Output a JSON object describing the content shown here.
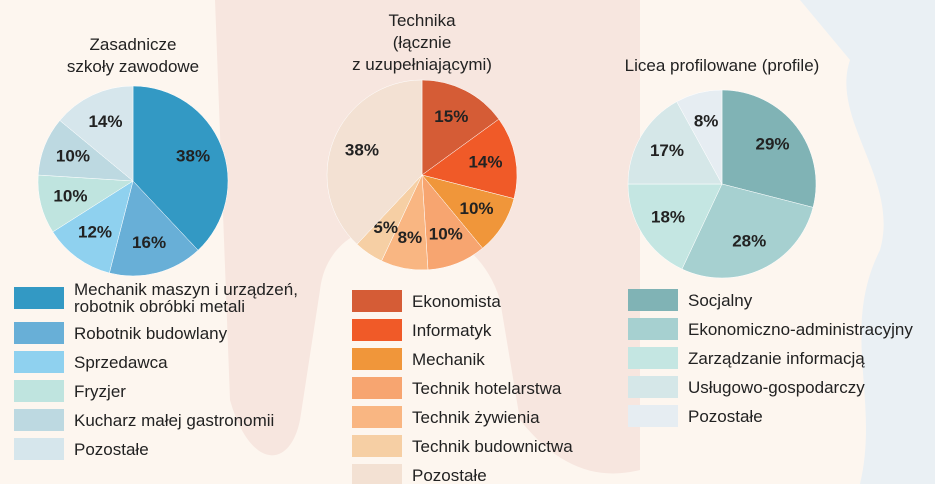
{
  "chart_data": [
    {
      "type": "pie",
      "title": "Zasadnicze\nszkoły zawodowe",
      "categories": [
        "Mechanik maszyn i urządzeń,\nrobotnik obróbki metali",
        "Robotnik budowlany",
        "Sprzedawca",
        "Fryzjer",
        "Kucharz małej gastronomii",
        "Pozostałe"
      ],
      "values": [
        38,
        16,
        12,
        10,
        10,
        14
      ],
      "value_labels": [
        "38%",
        "16%",
        "12%",
        "10%",
        "10%",
        "14%"
      ],
      "colors": [
        "#3399c4",
        "#68afd7",
        "#8fd1ef",
        "#bfe4df",
        "#bdd9e1",
        "#d6e6ec"
      ]
    },
    {
      "type": "pie",
      "title": "Technika\n(łącznie\nz uzupełniającymi)",
      "categories": [
        "Ekonomista",
        "Informatyk",
        "Mechanik",
        "Technik hotelarstwa",
        "Technik żywienia",
        "Technik budownictwa",
        "Pozostałe"
      ],
      "values": [
        15,
        14,
        10,
        10,
        8,
        5,
        38
      ],
      "value_labels": [
        "15%",
        "14%",
        "10%",
        "10%",
        "8%",
        "5%",
        "38%"
      ],
      "colors": [
        "#d55c36",
        "#f05a28",
        "#f0963a",
        "#f7a570",
        "#f9b682",
        "#f6cfa4",
        "#f3e1d3"
      ]
    },
    {
      "type": "pie",
      "title": "Licea profilowane (profile)",
      "categories": [
        "Socjalny",
        "Ekonomiczno-administracyjny",
        "Zarządzanie informacją",
        "Usługowo-gospodarczy",
        "Pozostałe"
      ],
      "values": [
        29,
        28,
        18,
        17,
        8
      ],
      "value_labels": [
        "29%",
        "28%",
        "18%",
        "17%",
        "8%"
      ],
      "colors": [
        "#80b3b5",
        "#a6d0d0",
        "#c4e6e2",
        "#d5e7e8",
        "#e6edf2"
      ]
    }
  ]
}
